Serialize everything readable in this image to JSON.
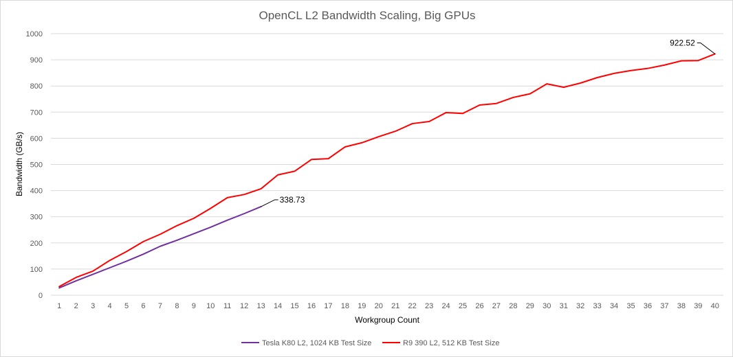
{
  "chart_data": {
    "type": "line",
    "title": "OpenCL L2 Bandwidth Scaling, Big GPUs",
    "xlabel": "Workgroup Count",
    "ylabel": "Bandwidth (GB/s)",
    "ylim": [
      0,
      1000
    ],
    "yticks": [
      0,
      100,
      200,
      300,
      400,
      500,
      600,
      700,
      800,
      900,
      1000
    ],
    "x": [
      1,
      2,
      3,
      4,
      5,
      6,
      7,
      8,
      9,
      10,
      11,
      12,
      13,
      14,
      15,
      16,
      17,
      18,
      19,
      20,
      21,
      22,
      23,
      24,
      25,
      26,
      27,
      28,
      29,
      30,
      31,
      32,
      33,
      34,
      35,
      36,
      37,
      38,
      39,
      40
    ],
    "xticks": [
      "1",
      "2",
      "3",
      "4",
      "5",
      "6",
      "7",
      "8",
      "9",
      "10",
      "11",
      "12",
      "13",
      "14",
      "15",
      "16",
      "17",
      "18",
      "19",
      "20",
      "21",
      "22",
      "23",
      "24",
      "25",
      "26",
      "27",
      "28",
      "29",
      "30",
      "31",
      "32",
      "33",
      "34",
      "35",
      "36",
      "37",
      "38",
      "39",
      "40"
    ],
    "grid": "horizontal",
    "legend_position": "bottom",
    "series": [
      {
        "name": "Tesla K80 L2, 1024 KB Test Size",
        "color": "#7030a0",
        "x": [
          1,
          2,
          3,
          4,
          5,
          6,
          7,
          8,
          9,
          10,
          11,
          12,
          13
        ],
        "values": [
          28,
          55,
          80,
          105,
          130,
          157,
          187,
          210,
          235,
          260,
          287,
          312,
          338.73
        ]
      },
      {
        "name": "R9 390 L2, 512 KB Test Size",
        "color": "#ff0000",
        "x": [
          1,
          2,
          3,
          4,
          5,
          6,
          7,
          8,
          9,
          10,
          11,
          12,
          13,
          14,
          15,
          16,
          17,
          18,
          19,
          20,
          21,
          22,
          23,
          24,
          25,
          26,
          27,
          28,
          29,
          30,
          31,
          32,
          33,
          34,
          35,
          36,
          37,
          38,
          39,
          40
        ],
        "values": [
          33,
          68,
          92,
          133,
          167,
          205,
          233,
          266,
          294,
          332,
          373,
          385,
          407,
          460,
          474,
          519,
          522,
          567,
          583,
          606,
          627,
          656,
          664,
          698,
          695,
          727,
          733,
          756,
          770,
          808,
          795,
          811,
          832,
          848,
          859,
          867,
          880,
          896,
          897,
          922.52
        ]
      }
    ],
    "annotations": [
      {
        "text": "338.73",
        "x": 13,
        "y": 338.73
      },
      {
        "text": "922.52",
        "x": 40,
        "y": 922.52
      }
    ]
  }
}
